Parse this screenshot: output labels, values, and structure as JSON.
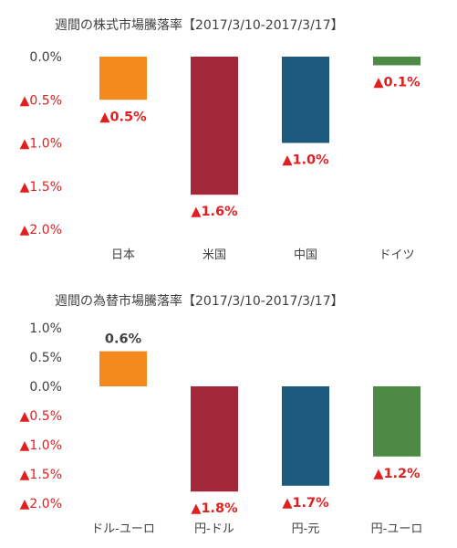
{
  "chart_data": [
    {
      "type": "bar",
      "title": "週間の株式市場騰落率【2017/3/10-2017/3/17】",
      "categories": [
        "日本",
        "米国",
        "中国",
        "ドイツ"
      ],
      "values": [
        -0.5,
        -1.6,
        -1.0,
        -0.1
      ],
      "data_labels": [
        "▲0.5%",
        "▲1.6%",
        "▲1.0%",
        "▲0.1%"
      ],
      "colors": [
        "#F28A1E",
        "#A3283A",
        "#1E5A7E",
        "#4E8A46"
      ],
      "ylim": [
        -2.0,
        0.0
      ],
      "y_ticks": [
        0.0,
        -0.5,
        -1.0,
        -1.5,
        -2.0
      ],
      "y_tick_labels": [
        "0.0%",
        "▲0.5%",
        "▲1.0%",
        "▲1.5%",
        "▲2.0%"
      ],
      "grid": false,
      "legend": "none"
    },
    {
      "type": "bar",
      "title": "週間の為替市場騰落率【2017/3/10-2017/3/17】",
      "categories": [
        "ドル-ユーロ",
        "円-ドル",
        "円-元",
        "円-ユーロ"
      ],
      "values": [
        0.6,
        -1.8,
        -1.7,
        -1.2
      ],
      "data_labels": [
        "0.6%",
        "▲1.8%",
        "▲1.7%",
        "▲1.2%"
      ],
      "colors": [
        "#F28A1E",
        "#A3283A",
        "#1E5A7E",
        "#4E8A46"
      ],
      "ylim": [
        -2.0,
        1.0
      ],
      "y_ticks": [
        1.0,
        0.5,
        0.0,
        -0.5,
        -1.0,
        -1.5,
        -2.0
      ],
      "y_tick_labels": [
        "1.0%",
        "0.5%",
        "0.0%",
        "▲0.5%",
        "▲1.0%",
        "▲1.5%",
        "▲2.0%"
      ],
      "grid": false,
      "legend": "none"
    }
  ],
  "style": {
    "negative_color": "#E02020",
    "positive_color": "#404040",
    "tick_positive_color": "#404040"
  }
}
